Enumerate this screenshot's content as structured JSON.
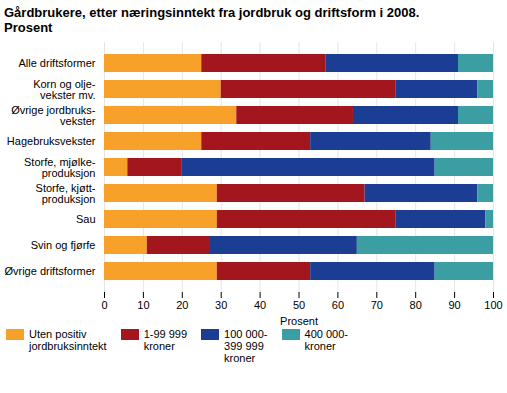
{
  "chart_data": {
    "type": "bar",
    "orientation": "horizontal",
    "stacked": true,
    "grid": true,
    "legend": "bottom",
    "title": "Gårdbrukere, etter næringsinntekt fra jordbruk og driftsform i 2008.\nProsent",
    "xlabel": "Prosent",
    "xlim": [
      0,
      100
    ],
    "xticks": [
      0,
      10,
      20,
      30,
      40,
      50,
      60,
      70,
      80,
      90,
      100
    ],
    "categories": [
      "Alle driftsformer",
      "Korn og olje-\nvekster mv.",
      "Øvrige jordbruks-\nvekster",
      "Hagebruksvekster",
      "Storfe, mjølke-\nproduksjon",
      "Storfe, kjøtt-\nproduksjon",
      "Sau",
      "Svin og fjørfe",
      "Øvrige driftsformer"
    ],
    "series": [
      {
        "name": "Uten positiv\njordbruksinntekt",
        "color": "#f7a12b",
        "values": [
          25,
          30,
          34,
          25,
          6,
          29,
          29,
          11,
          29
        ]
      },
      {
        "name": "1-99 999\nkroner",
        "color": "#a3161d",
        "values": [
          32,
          45,
          30,
          28,
          14,
          38,
          46,
          16,
          24
        ]
      },
      {
        "name": "100 000-\n399 999\nkroner",
        "color": "#1b3d94",
        "values": [
          34,
          21,
          27,
          31,
          65,
          29,
          23,
          38,
          32
        ]
      },
      {
        "name": "400 000-\nkroner",
        "color": "#3b9ea2",
        "values": [
          9,
          4,
          9,
          16,
          15,
          4,
          2,
          35,
          15
        ]
      }
    ]
  }
}
